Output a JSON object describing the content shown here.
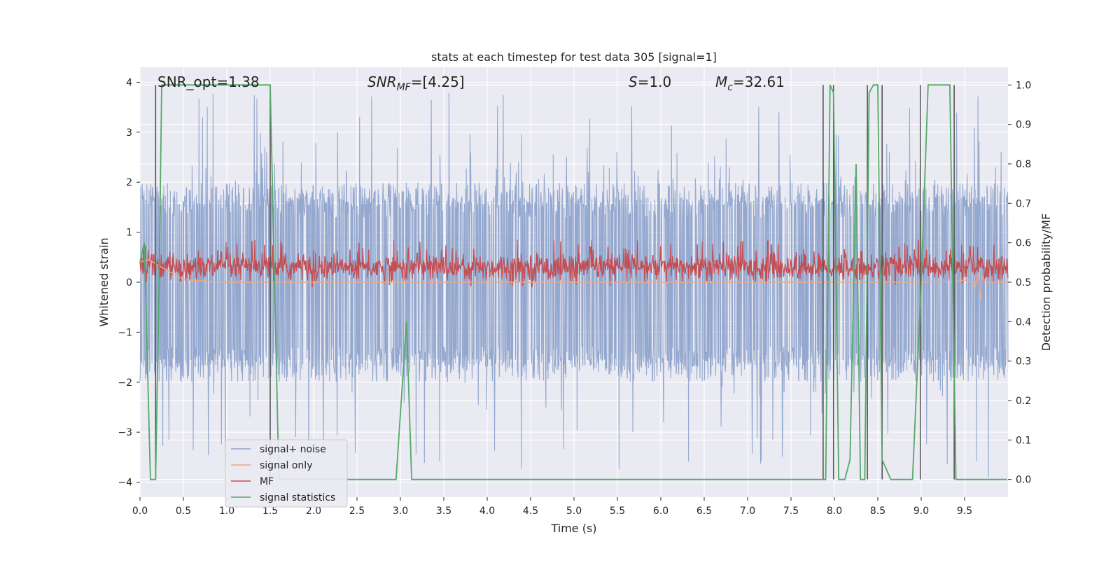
{
  "chart_data": {
    "type": "line",
    "title": "stats at each timestep for test data 305 [signal=1]",
    "xlabel": "Time (s)",
    "ylabel": "Whitened strain",
    "y2label": "Detection probability/MF",
    "xlim": [
      0,
      10
    ],
    "ylim": [
      -4.3,
      4.3
    ],
    "y2lim": [
      -0.045,
      1.045
    ],
    "xticks": [
      "0.0",
      "0.5",
      "1.0",
      "1.5",
      "2.0",
      "2.5",
      "3.0",
      "3.5",
      "4.0",
      "4.5",
      "5.0",
      "5.5",
      "6.0",
      "6.5",
      "7.0",
      "7.5",
      "8.0",
      "8.5",
      "9.0",
      "9.5"
    ],
    "yticks": [
      "−4",
      "−3",
      "−2",
      "−1",
      "0",
      "1",
      "2",
      "3",
      "4"
    ],
    "y2ticks": [
      "0.0",
      "0.1",
      "0.2",
      "0.3",
      "0.4",
      "0.5",
      "0.6",
      "0.7",
      "0.8",
      "0.9",
      "1.0"
    ],
    "grid": true,
    "legend_position": "lower-left",
    "annotations": {
      "snr_opt": "SNR_opt=1.38",
      "snr_mf_main": "SNR",
      "snr_mf_sub": "MF",
      "snr_mf_value": "=[4.25]",
      "s_main": "S",
      "s_value": "=1.0",
      "mc_main": "M",
      "mc_sub": "c",
      "mc_value": "=32.61"
    },
    "series": [
      {
        "name": "signal+ noise",
        "axis": "left",
        "color": "#8fa4cc",
        "description_envelope": {
          "typical_range": [
            -1.6,
            1.9
          ],
          "peak_range": [
            -3.9,
            3.9
          ]
        }
      },
      {
        "name": "signal only",
        "axis": "left",
        "color": "#e8a988",
        "x": [
          0.0,
          0.1,
          0.5,
          1.0,
          2.0,
          3.0,
          4.0,
          5.0,
          6.0,
          7.0,
          8.0,
          9.0,
          9.4,
          9.55,
          9.62,
          9.66,
          9.68,
          9.7,
          9.72,
          9.76,
          9.8,
          9.9,
          9.99
        ],
        "y": [
          0.4,
          0.45,
          0.05,
          0.0,
          0.0,
          0.0,
          0.0,
          0.0,
          0.0,
          0.0,
          0.0,
          0.0,
          0.02,
          0.05,
          -0.1,
          0.2,
          -0.35,
          0.1,
          0.05,
          0.0,
          0.0,
          0.0,
          0.0
        ]
      },
      {
        "name": "MF",
        "axis": "left",
        "color": "#c44e52",
        "description_envelope": {
          "typical_range": [
            0.05,
            0.55
          ],
          "peak_range": [
            -0.1,
            0.85
          ]
        }
      },
      {
        "name": "signal statistics",
        "axis": "right",
        "color": "#55a868",
        "x": [
          0.0,
          0.05,
          0.12,
          0.18,
          0.22,
          0.25,
          1.5,
          1.6,
          2.9,
          2.95,
          3.07,
          3.13,
          7.87,
          7.9,
          7.95,
          7.99,
          8.05,
          8.12,
          8.18,
          8.25,
          8.3,
          8.35,
          8.4,
          8.45,
          8.5,
          8.55,
          8.65,
          8.9,
          9.0,
          9.08,
          9.33,
          9.4,
          9.99
        ],
        "y": [
          0.55,
          0.6,
          0.0,
          0.0,
          0.5,
          1.0,
          1.0,
          0.0,
          0.0,
          0.0,
          0.4,
          0.0,
          0.0,
          0.0,
          1.0,
          0.98,
          0.0,
          0.0,
          0.05,
          0.8,
          0.0,
          0.0,
          0.98,
          1.0,
          1.0,
          0.05,
          0.0,
          0.0,
          0.5,
          1.0,
          1.0,
          0.0,
          0.0
        ]
      }
    ],
    "vertical_markers": {
      "color": "#555555",
      "x": [
        0.18,
        1.5,
        7.87,
        7.99,
        8.38,
        8.55,
        8.99,
        9.38
      ],
      "y2_range": [
        0.0,
        1.0
      ]
    }
  }
}
